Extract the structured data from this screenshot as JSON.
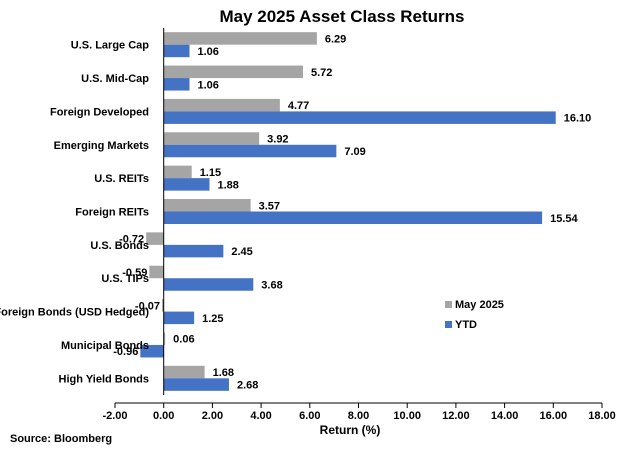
{
  "chart_data": {
    "type": "bar",
    "orientation": "horizontal",
    "title": "May 2025 Asset Class Returns",
    "xlabel": "Return (%)",
    "ylabel": "",
    "xlim": [
      -2,
      18
    ],
    "x_ticks": [
      "-2.00",
      "0.00",
      "2.00",
      "4.00",
      "6.00",
      "8.00",
      "10.00",
      "12.00",
      "14.00",
      "16.00",
      "18.00"
    ],
    "grid": false,
    "legend_position": "right-center",
    "categories": [
      "U.S. Large Cap",
      "U.S.  Mid-Cap",
      "Foreign Developed",
      "Emerging Markets",
      "U.S. REITs",
      "Foreign REITs",
      "U.S. Bonds",
      "U.S. TIPs",
      "Foreign Bonds  (USD Hedged)",
      "Municipal Bonds",
      "High Yield Bonds"
    ],
    "series": [
      {
        "name": "May 2025",
        "color": "#a5a5a5",
        "values": [
          6.29,
          5.72,
          4.77,
          3.92,
          1.15,
          3.57,
          -0.72,
          -0.59,
          -0.07,
          0.06,
          1.68
        ],
        "labels": [
          "6.29",
          "5.72",
          "4.77",
          "3.92",
          "1.15",
          "3.57",
          "-0.72",
          "-0.59",
          "-0.07",
          "0.06",
          "1.68"
        ]
      },
      {
        "name": "YTD",
        "color": "#4472c4",
        "values": [
          1.06,
          1.06,
          16.1,
          7.09,
          1.88,
          15.54,
          2.45,
          3.68,
          1.25,
          -0.96,
          2.68
        ],
        "labels": [
          "1.06",
          "1.06",
          "16.10",
          "7.09",
          "1.88",
          "15.54",
          "2.45",
          "3.68",
          "1.25",
          "-0.96",
          "2.68"
        ]
      }
    ]
  },
  "source": "Source: Bloomberg"
}
